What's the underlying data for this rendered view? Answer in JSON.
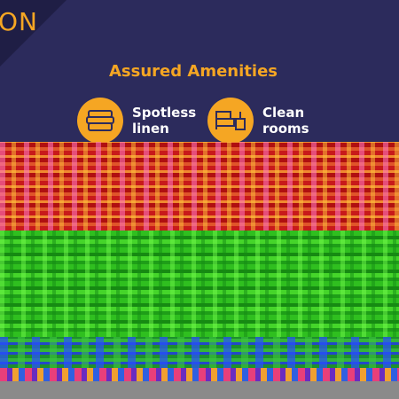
{
  "header": {
    "logo": "ON",
    "heading": "Assured Amenities"
  },
  "amenities": [
    {
      "label": "Spotless linen"
    },
    {
      "label": "Clean rooms"
    }
  ]
}
